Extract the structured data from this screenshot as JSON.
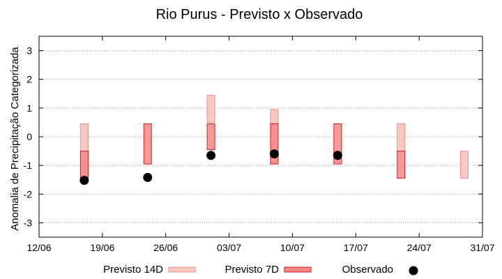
{
  "chart_data": {
    "type": "range-bar",
    "title": "Rio Purus - Previsto x Observado",
    "xlabel": "",
    "ylabel": "Anomalia de Precipitação Categorizada",
    "ylim": [
      -3.5,
      3.5
    ],
    "yticks": [
      -3,
      -2,
      -1,
      0,
      1,
      2,
      3
    ],
    "xlim": [
      "2024-06-12",
      "2024-07-31"
    ],
    "xticks": [
      {
        "date": "2024-06-12",
        "label": "12/06"
      },
      {
        "date": "2024-06-19",
        "label": "19/06"
      },
      {
        "date": "2024-06-26",
        "label": "26/06"
      },
      {
        "date": "2024-07-03",
        "label": "03/07"
      },
      {
        "date": "2024-07-10",
        "label": "10/07"
      },
      {
        "date": "2024-07-17",
        "label": "17/07"
      },
      {
        "date": "2024-07-24",
        "label": "24/07"
      },
      {
        "date": "2024-07-31",
        "label": "31/07"
      }
    ],
    "grid": "horizontal-dotted",
    "legend_position": "bottom",
    "series": [
      {
        "name": "Previsto 14D",
        "color": "#f8c8c3",
        "edge": "#f09088",
        "points": [
          {
            "x": "2024-06-17",
            "low": -1.5,
            "high": 0.45
          },
          {
            "x": "2024-07-01",
            "low": 0.5,
            "high": 1.45
          },
          {
            "x": "2024-07-08",
            "low": -0.95,
            "high": 0.95
          },
          {
            "x": "2024-07-22",
            "low": -0.5,
            "high": 0.45
          },
          {
            "x": "2024-07-29",
            "low": -1.45,
            "high": -0.5
          }
        ]
      },
      {
        "name": "Previsto 7D",
        "color": "#f98585",
        "edge": "#cc1f1f",
        "points": [
          {
            "x": "2024-06-17",
            "low": -1.45,
            "high": -0.5
          },
          {
            "x": "2024-06-24",
            "low": -0.95,
            "high": 0.45
          },
          {
            "x": "2024-07-01",
            "low": -0.45,
            "high": 0.45
          },
          {
            "x": "2024-07-08",
            "low": -0.95,
            "high": 0.45
          },
          {
            "x": "2024-07-15",
            "low": -0.95,
            "high": 0.45
          },
          {
            "x": "2024-07-22",
            "low": -1.45,
            "high": -0.5
          }
        ]
      },
      {
        "name": "Observado",
        "color": "#000000",
        "points": [
          {
            "x": "2024-06-17",
            "y": -1.52
          },
          {
            "x": "2024-06-24",
            "y": -1.42
          },
          {
            "x": "2024-07-01",
            "y": -0.65
          },
          {
            "x": "2024-07-08",
            "y": -0.6
          },
          {
            "x": "2024-07-15",
            "y": -0.65
          }
        ]
      }
    ]
  }
}
